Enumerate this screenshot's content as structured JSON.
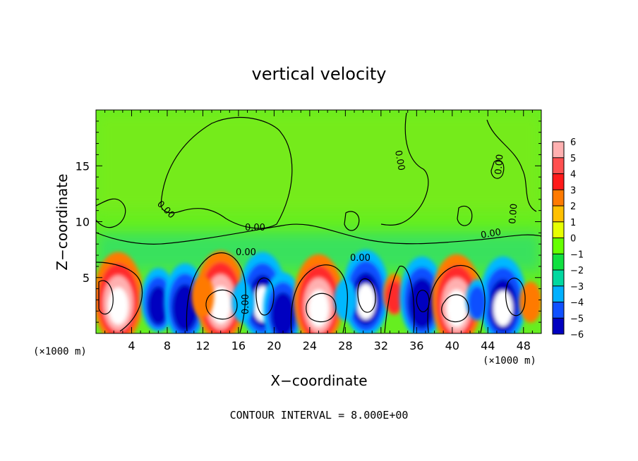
{
  "chart_data": {
    "type": "heatmap",
    "title": "vertical velocity",
    "xlabel": "X−coordinate",
    "ylabel": "Z−coordinate",
    "x_unit_left": "(×1000 m)",
    "x_unit_right": "(×1000 m)",
    "footer": "CONTOUR INTERVAL = 8.000E+00",
    "xlim": [
      0,
      50
    ],
    "ylim": [
      0,
      20
    ],
    "x_ticks": [
      "4",
      "8",
      "12",
      "16",
      "20",
      "24",
      "28",
      "32",
      "36",
      "40",
      "44",
      "48"
    ],
    "y_ticks": [
      "5",
      "10",
      "15"
    ],
    "contour_labels": [
      "0.00",
      "0.00",
      "0.00",
      "0.00",
      "0.00",
      "0.00",
      "0.00",
      "0.00",
      "0.00"
    ],
    "colorbar": {
      "levels": [
        "6",
        "5",
        "4",
        "3",
        "2",
        "1",
        "0",
        "−1",
        "−2",
        "−3",
        "−4",
        "−5",
        "−6"
      ],
      "colors": [
        "#ffb0b0",
        "#ff5050",
        "#ff1a1a",
        "#ff7a00",
        "#ffc000",
        "#e6ff00",
        "#66ff00",
        "#10e040",
        "#00d8a0",
        "#00b0ff",
        "#1050ff",
        "#0000c0",
        "#8000c0"
      ]
    },
    "cells": [
      {
        "x": 2.5,
        "z": 3.2,
        "w": 1.0
      },
      {
        "x": 7.0,
        "z": 3.0,
        "w": -0.7
      },
      {
        "x": 10.0,
        "z": 2.8,
        "w": -0.85
      },
      {
        "x": 14.0,
        "z": 3.3,
        "w": 1.0
      },
      {
        "x": 18.7,
        "z": 3.4,
        "w": -0.95
      },
      {
        "x": 21.0,
        "z": 2.2,
        "w": -0.8
      },
      {
        "x": 25.0,
        "z": 3.0,
        "w": 1.0
      },
      {
        "x": 30.3,
        "z": 3.6,
        "w": -0.95
      },
      {
        "x": 33.5,
        "z": 3.5,
        "w": 0.35
      },
      {
        "x": 36.6,
        "z": 3.2,
        "w": -0.9
      },
      {
        "x": 40.5,
        "z": 3.0,
        "w": 1.0
      },
      {
        "x": 45.7,
        "z": 3.0,
        "w": -0.95
      },
      {
        "x": 48.8,
        "z": 2.8,
        "w": 0.3
      },
      {
        "x": 42.8,
        "z": 3.0,
        "w": -0.35
      },
      {
        "x": 28.0,
        "z": 3.0,
        "w": -0.2
      },
      {
        "x": 16.5,
        "z": 2.8,
        "w": -0.25
      },
      {
        "x": 12.0,
        "z": 3.3,
        "w": 0.3
      }
    ]
  }
}
